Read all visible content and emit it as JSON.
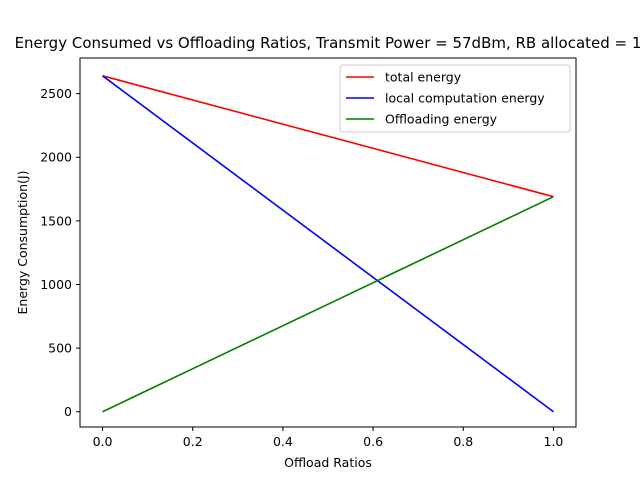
{
  "chart_data": {
    "type": "line",
    "title": "Energy Consumed vs Offloading Ratios, Transmit Power = 57dBm, RB allocated = 1",
    "xlabel": "Offload Ratios",
    "ylabel": "Energy Consumption(J)",
    "xlim": [
      -0.05,
      1.05
    ],
    "ylim": [
      -120,
      2780
    ],
    "xticks": [
      0.0,
      0.2,
      0.4,
      0.6,
      0.8,
      1.0
    ],
    "xtick_labels": [
      "0.0",
      "0.2",
      "0.4",
      "0.6",
      "0.8",
      "1.0"
    ],
    "yticks": [
      0,
      500,
      1000,
      1500,
      2000,
      2500
    ],
    "ytick_labels": [
      "0",
      "500",
      "1000",
      "1500",
      "2000",
      "2500"
    ],
    "grid": false,
    "legend_position": "top-right",
    "series": [
      {
        "name": "total energy",
        "color": "#ff0000",
        "x": [
          0.0,
          1.0
        ],
        "y": [
          2640,
          1690
        ]
      },
      {
        "name": "local computation energy",
        "color": "#0000ff",
        "x": [
          0.0,
          1.0
        ],
        "y": [
          2640,
          0
        ]
      },
      {
        "name": "Offloading energy",
        "color": "#008000",
        "x": [
          0.0,
          1.0
        ],
        "y": [
          0,
          1690
        ]
      }
    ]
  }
}
